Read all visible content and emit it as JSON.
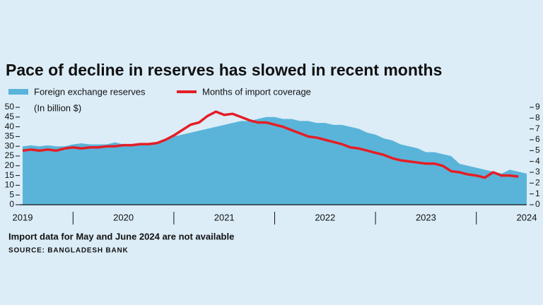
{
  "chart_data": {
    "type": "area-line",
    "title": "Pace of decline in reserves has slowed in recent months",
    "ylabel": "(In billion $)",
    "note": "Import data for May and June 2024 are not available",
    "source": "SOURCE: BANGLADESH BANK",
    "categories": [
      "2019",
      null,
      null,
      null,
      null,
      null,
      null,
      null,
      null,
      null,
      null,
      null,
      "2020",
      null,
      null,
      null,
      null,
      null,
      null,
      null,
      null,
      null,
      null,
      null,
      "2021",
      null,
      null,
      null,
      null,
      null,
      null,
      null,
      null,
      null,
      null,
      null,
      "2022",
      null,
      null,
      null,
      null,
      null,
      null,
      null,
      null,
      null,
      null,
      null,
      "2023",
      null,
      null,
      null,
      null,
      null,
      null,
      null,
      null,
      null,
      null,
      null,
      "2024"
    ],
    "series": [
      {
        "name": "Foreign exchange reserves",
        "color": "#5ab4d9",
        "values": [
          30,
          30.5,
          30,
          30.5,
          30,
          30,
          31,
          31.5,
          31,
          31,
          31,
          32,
          31,
          31,
          31,
          31,
          32,
          33,
          35,
          36,
          37,
          38,
          39,
          40,
          41,
          42,
          43,
          43,
          44,
          45,
          45,
          44,
          44,
          43,
          43,
          42,
          42,
          41,
          41,
          40,
          39,
          37,
          36,
          34,
          33,
          31,
          30,
          29,
          27,
          27,
          26,
          25,
          21,
          20,
          19,
          18,
          17,
          16,
          18,
          17,
          16
        ]
      },
      {
        "name": "Months of import coverage",
        "color": "#e41e26",
        "axis": "y2",
        "values": [
          5.0,
          5.1,
          5.0,
          5.1,
          5.0,
          5.2,
          5.3,
          5.2,
          5.3,
          5.3,
          5.4,
          5.4,
          5.5,
          5.5,
          5.6,
          5.6,
          5.7,
          6.0,
          6.4,
          6.9,
          7.4,
          7.6,
          8.2,
          8.6,
          8.3,
          8.4,
          8.1,
          7.8,
          7.6,
          7.6,
          7.4,
          7.2,
          6.9,
          6.6,
          6.3,
          6.2,
          6.0,
          5.8,
          5.6,
          5.3,
          5.2,
          5.0,
          4.8,
          4.6,
          4.3,
          4.1,
          4.0,
          3.9,
          3.8,
          3.8,
          3.6,
          3.1,
          3.0,
          2.8,
          2.7,
          2.5,
          3.0,
          2.7,
          2.7,
          2.6,
          null
        ]
      }
    ],
    "ylim": [
      0,
      50
    ],
    "yticks": [
      0,
      5,
      10,
      15,
      20,
      25,
      30,
      35,
      40,
      45,
      50
    ],
    "y2lim": [
      0,
      9
    ],
    "y2ticks": [
      0,
      1,
      2,
      3,
      4,
      5,
      6,
      7,
      8,
      9
    ]
  }
}
